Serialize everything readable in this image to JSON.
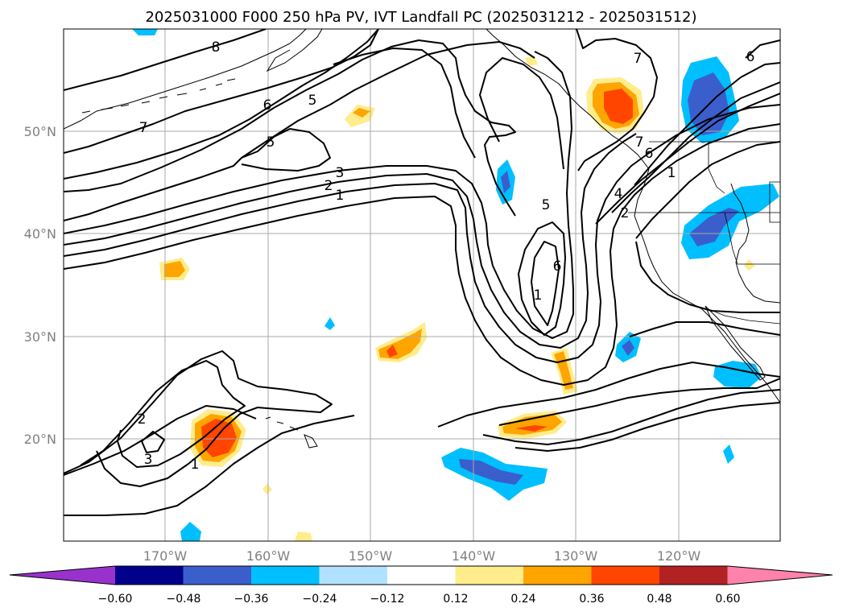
{
  "title": "2025031000 F000 250 hPa PV, IVT Landfall PC (2025031212 - 2025031512)",
  "lon_labels": [
    "170°W",
    "160°W",
    "150°W",
    "140°W",
    "130°W",
    "120°W"
  ],
  "lat_labels": [
    "50°N",
    "40°N",
    "30°N",
    "20°N"
  ],
  "contour_labels": [
    "8",
    "7",
    "6",
    "5",
    "5",
    "3",
    "2",
    "1",
    "5",
    "6",
    "7",
    "6",
    "4",
    "2",
    "1",
    "7",
    "1",
    "2",
    "3",
    "1",
    "6"
  ],
  "colorbar": {
    "ticks": [
      "−0.60",
      "−0.48",
      "−0.36",
      "−0.24",
      "−0.12",
      "0.12",
      "0.24",
      "0.36",
      "0.48",
      "0.60"
    ],
    "colors": [
      "#9932cc",
      "#00008b",
      "#3a5fcd",
      "#00bfff",
      "#b0e2ff",
      "#ffffff",
      "#ffec8b",
      "#ffa500",
      "#ff4500",
      "#b22222",
      "#ff82ab"
    ]
  },
  "fill_colors": {
    "neg_light": "#00bfff",
    "neg_mid": "#3a5fcd",
    "pos_light": "#ffec8b",
    "pos_mid": "#ffa500",
    "pos_strong": "#ff4500"
  }
}
